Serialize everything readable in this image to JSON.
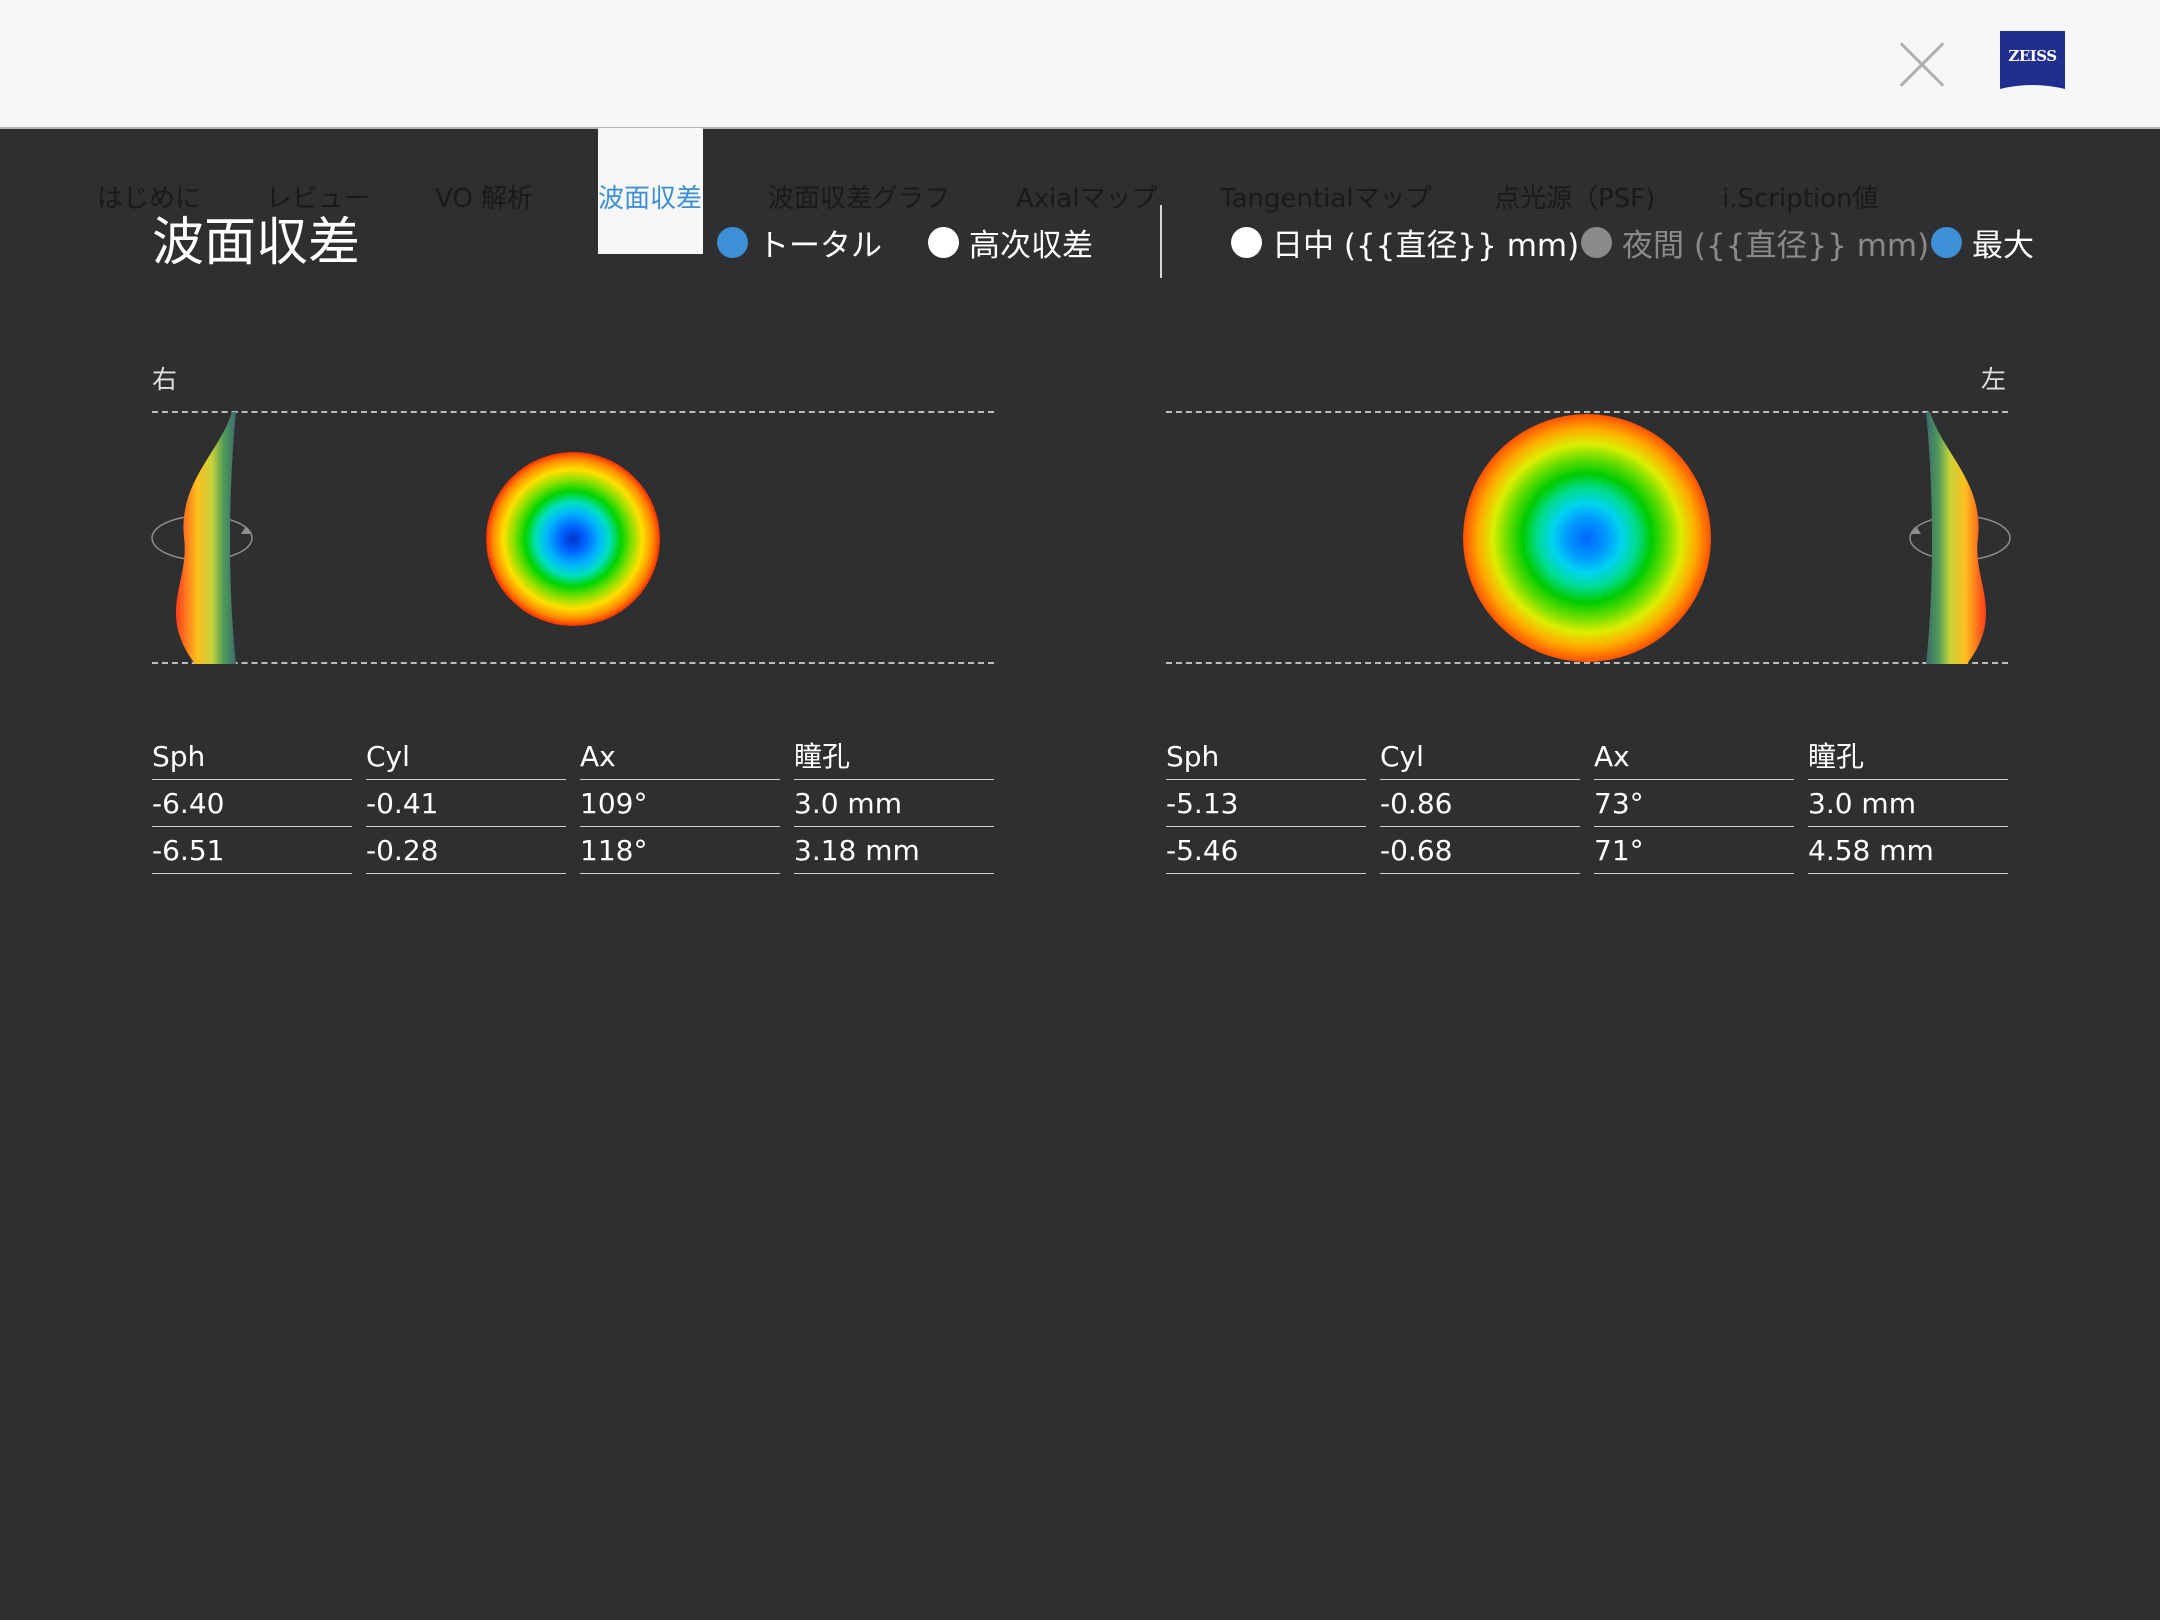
{
  "logo_text": "ZEISS",
  "nav": {
    "items": [
      "はじめに",
      "レビュー",
      "VO 解析",
      "波面収差",
      "波面収差グラフ",
      "Axialマップ",
      "Tangentialマップ",
      "点光源（PSF)",
      "i.Scription値"
    ],
    "active_index": 3
  },
  "page_title": "波面収差",
  "options": {
    "total": "トータル",
    "higher_order": "高次収差",
    "day": "日中 ({{直径}} mm)",
    "night": "夜間 ({{直径}} mm)",
    "max": "最大",
    "selected": [
      "total",
      "max"
    ],
    "disabled": [
      "night"
    ]
  },
  "eyes": {
    "right": {
      "label": "右",
      "table": {
        "headers": [
          "Sph",
          "Cyl",
          "Ax",
          "瞳孔"
        ],
        "rows": [
          [
            "-6.40",
            "-0.41",
            "109°",
            "3.0 mm"
          ],
          [
            "-6.51",
            "-0.28",
            "118°",
            "3.18 mm"
          ]
        ]
      }
    },
    "left": {
      "label": "左",
      "table": {
        "headers": [
          "Sph",
          "Cyl",
          "Ax",
          "瞳孔"
        ],
        "rows": [
          [
            "-5.13",
            "-0.86",
            "73°",
            "3.0 mm"
          ],
          [
            "-5.46",
            "-0.68",
            "71°",
            "4.58 mm"
          ]
        ]
      }
    }
  },
  "colors": {
    "background": "#2e2f31",
    "topbar": "#f7f7f7",
    "accent": "#3d8fd6",
    "zeiss_blue": "#1f2e8f"
  }
}
